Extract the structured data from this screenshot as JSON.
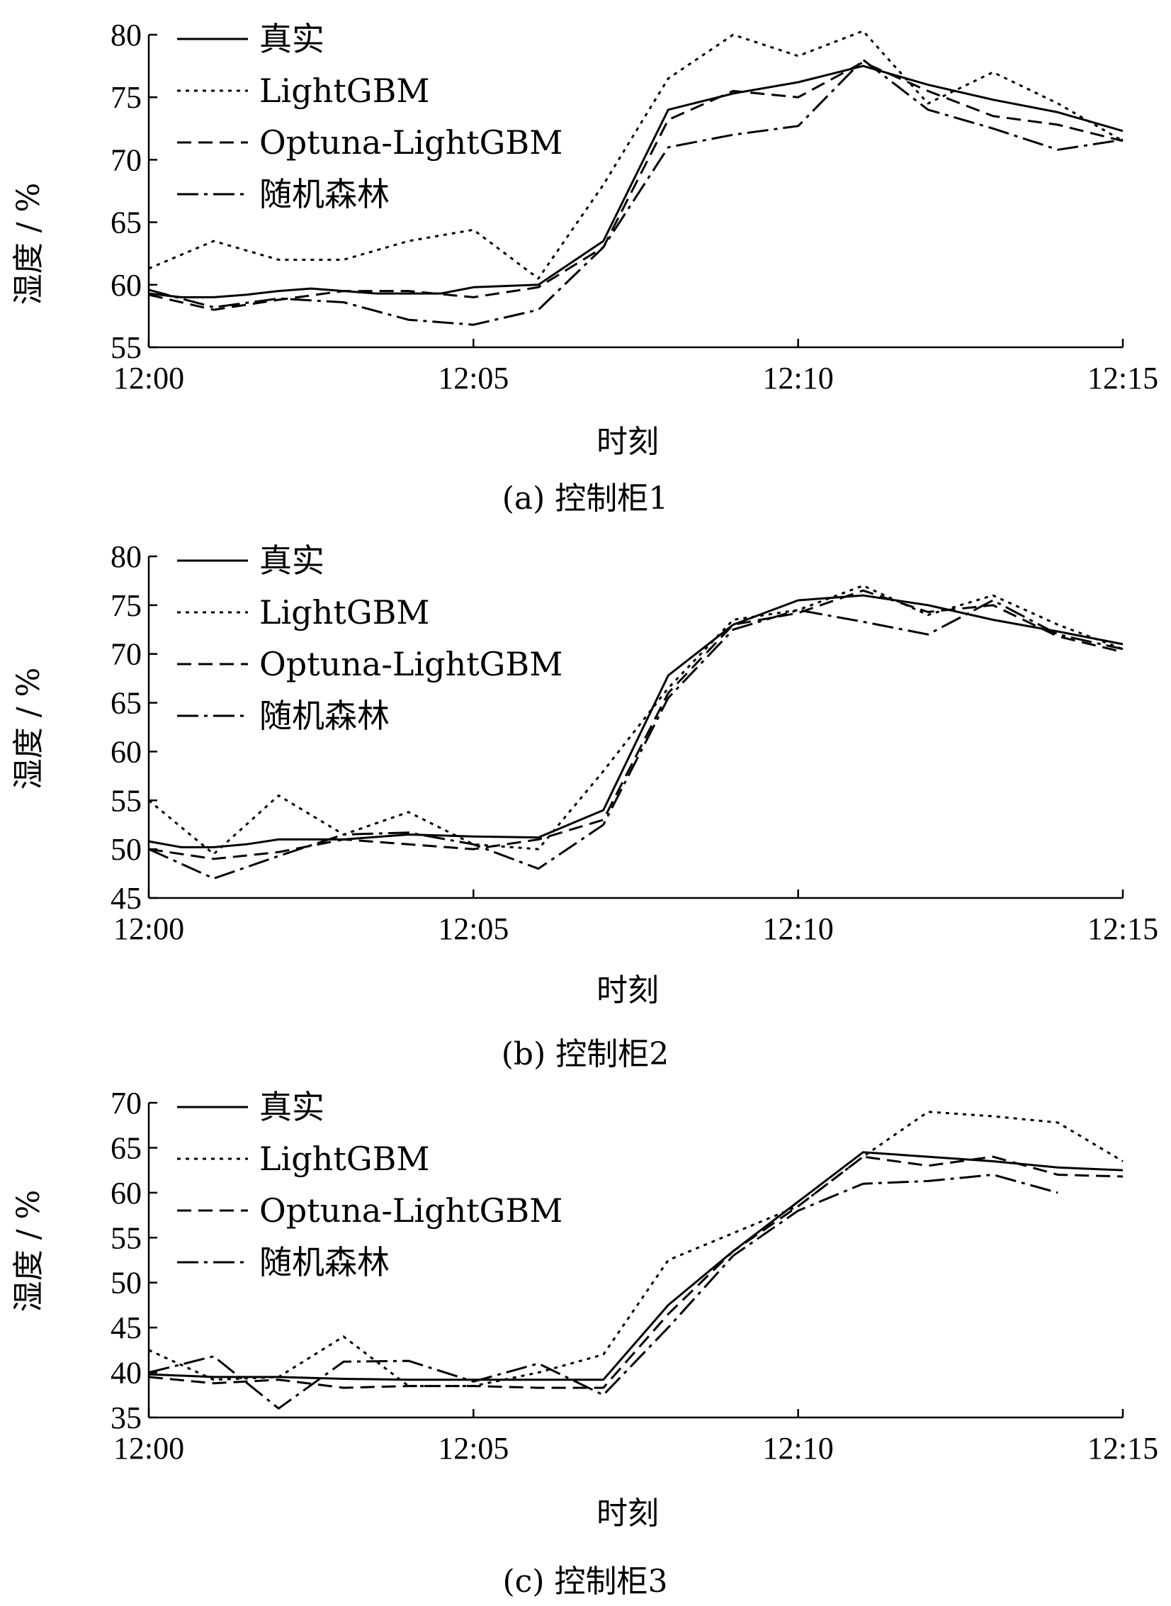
{
  "chart_data": [
    {
      "type": "line",
      "caption": "(a)  控制柜1",
      "xlabel": "时刻",
      "ylabel": "湿度 / %",
      "xtick_labels": [
        "12:00",
        "12:05",
        "12:10",
        "12:15"
      ],
      "xlim": [
        0,
        15
      ],
      "ylim": [
        55,
        80
      ],
      "yticks": [
        55,
        60,
        65,
        70,
        75,
        80
      ],
      "legend_position": "top-left",
      "series": [
        {
          "name": "真实",
          "style": "solid",
          "x": [
            0,
            0.5,
            1,
            1.5,
            2,
            2.5,
            3,
            3.5,
            4,
            4.5,
            5,
            6,
            7,
            8,
            9,
            10,
            11,
            12,
            13,
            14,
            15
          ],
          "values": [
            59.3,
            59.0,
            59.0,
            59.2,
            59.5,
            59.7,
            59.5,
            59.3,
            59.3,
            59.3,
            59.8,
            60.0,
            63.5,
            74.0,
            75.3,
            76.2,
            77.5,
            76.0,
            74.8,
            73.8,
            72.3
          ]
        },
        {
          "name": "LightGBM",
          "style": "dotted",
          "x": [
            0,
            1,
            2,
            3,
            4,
            5,
            6,
            7,
            8,
            9,
            10,
            11,
            12,
            13,
            14,
            15
          ],
          "values": [
            61.3,
            63.5,
            62.0,
            62.0,
            63.5,
            64.4,
            60.5,
            68.0,
            76.5,
            80.0,
            78.3,
            80.3,
            74.5,
            77.0,
            74.5,
            71.5
          ]
        },
        {
          "name": "Optuna-LightGBM",
          "style": "dashed",
          "x": [
            0,
            1,
            2,
            3,
            4,
            5,
            6,
            7,
            8,
            9,
            10,
            11,
            12,
            13,
            14,
            15
          ],
          "values": [
            59.2,
            58.0,
            58.8,
            59.5,
            59.5,
            59.0,
            59.8,
            63.0,
            73.2,
            75.5,
            75.0,
            77.8,
            75.5,
            73.5,
            72.8,
            71.5
          ]
        },
        {
          "name": "随机森林",
          "style": "dashdot",
          "x": [
            0,
            1,
            2,
            3,
            4,
            5,
            6,
            7,
            8,
            9,
            10,
            11,
            12,
            13,
            14,
            15
          ],
          "values": [
            59.6,
            58.2,
            58.9,
            58.6,
            57.2,
            56.8,
            58.0,
            63.0,
            71.0,
            72.0,
            72.7,
            78.0,
            74.0,
            72.5,
            70.8,
            71.6
          ]
        }
      ]
    },
    {
      "type": "line",
      "caption": "(b)  控制柜2",
      "xlabel": "时刻",
      "ylabel": "湿度 / %",
      "xtick_labels": [
        "12:00",
        "12:05",
        "12:10",
        "12:15"
      ],
      "xlim": [
        0,
        15
      ],
      "ylim": [
        45,
        80
      ],
      "yticks": [
        45,
        50,
        55,
        60,
        65,
        70,
        75,
        80
      ],
      "legend_position": "top-left",
      "series": [
        {
          "name": "真实",
          "style": "solid",
          "x": [
            0,
            0.5,
            1,
            1.5,
            2,
            3,
            4,
            5,
            6,
            7,
            8,
            9,
            10,
            11,
            12,
            13,
            14,
            15
          ],
          "values": [
            50.8,
            50.2,
            50.2,
            50.5,
            51.0,
            51.0,
            51.5,
            51.3,
            51.2,
            54.0,
            67.8,
            73.0,
            75.5,
            76.0,
            75.0,
            73.5,
            72.3,
            71.0
          ]
        },
        {
          "name": "LightGBM",
          "style": "dotted",
          "x": [
            0,
            1,
            2,
            3,
            4,
            5,
            6,
            7,
            8,
            9,
            10,
            11,
            12,
            13,
            14,
            15
          ],
          "values": [
            55.0,
            49.5,
            55.5,
            51.5,
            53.8,
            50.5,
            50.0,
            58.0,
            66.5,
            73.5,
            74.5,
            77.0,
            74.0,
            76.0,
            73.0,
            70.5
          ]
        },
        {
          "name": "Optuna-LightGBM",
          "style": "dashed",
          "x": [
            0,
            1,
            2,
            3,
            4,
            5,
            6,
            7,
            8,
            9,
            10,
            11,
            12,
            13,
            14,
            15
          ],
          "values": [
            50.0,
            49.0,
            49.7,
            51.0,
            50.5,
            50.0,
            51.0,
            53.0,
            66.0,
            73.0,
            74.2,
            76.5,
            74.3,
            75.0,
            71.8,
            70.2
          ]
        },
        {
          "name": "随机森林",
          "style": "dashdot",
          "x": [
            0,
            1,
            2,
            3,
            4,
            5,
            6,
            7,
            8,
            9,
            10,
            11,
            12,
            13,
            14,
            15
          ],
          "values": [
            50.0,
            47.0,
            49.3,
            51.5,
            51.7,
            50.5,
            48.0,
            52.5,
            65.5,
            72.5,
            74.5,
            73.3,
            72.0,
            75.5,
            72.0,
            70.5
          ]
        }
      ]
    },
    {
      "type": "line",
      "caption": "(c)  控制柜3",
      "xlabel": "时刻",
      "ylabel": "湿度 / %",
      "xtick_labels": [
        "12:00",
        "12:05",
        "12:10",
        "12:15"
      ],
      "xlim": [
        0,
        15
      ],
      "ylim": [
        35,
        70
      ],
      "yticks": [
        35,
        40,
        45,
        50,
        55,
        60,
        65,
        70
      ],
      "legend_position": "top-left",
      "series": [
        {
          "name": "真实",
          "style": "solid",
          "x": [
            0,
            1,
            2,
            3,
            4,
            5,
            6,
            7,
            8,
            9,
            10,
            11,
            12,
            13,
            14,
            15
          ],
          "values": [
            39.8,
            39.5,
            39.5,
            39.3,
            39.2,
            39.2,
            39.2,
            39.2,
            47.5,
            53.5,
            59.0,
            64.5,
            64.0,
            63.5,
            62.8,
            62.5
          ]
        },
        {
          "name": "LightGBM",
          "style": "dotted",
          "x": [
            0,
            1,
            2,
            3,
            4,
            5,
            6,
            7,
            8,
            9,
            10,
            11,
            12,
            13,
            14,
            15
          ],
          "values": [
            42.5,
            39.2,
            39.5,
            44.0,
            38.5,
            38.5,
            40.0,
            42.0,
            52.5,
            55.5,
            58.5,
            64.0,
            69.0,
            68.5,
            67.8,
            63.5
          ]
        },
        {
          "name": "Optuna-LightGBM",
          "style": "dashed",
          "x": [
            0,
            1,
            2,
            3,
            4,
            5,
            6,
            7,
            8,
            9,
            10,
            11,
            12,
            13,
            14,
            15
          ],
          "values": [
            39.5,
            38.8,
            39.2,
            38.3,
            38.5,
            38.5,
            38.3,
            38.3,
            46.5,
            53.5,
            58.5,
            64.0,
            63.0,
            64.0,
            62.0,
            61.8
          ]
        },
        {
          "name": "随机森林",
          "style": "dashdot",
          "x": [
            0,
            1,
            2,
            3,
            4,
            5,
            6,
            7,
            8,
            9,
            10,
            11,
            12,
            13,
            14
          ],
          "values": [
            40.0,
            41.8,
            36.0,
            41.2,
            41.3,
            39.0,
            41.0,
            37.5,
            45.0,
            53.0,
            58.0,
            61.0,
            61.3,
            62.0,
            60.0
          ]
        }
      ]
    }
  ]
}
